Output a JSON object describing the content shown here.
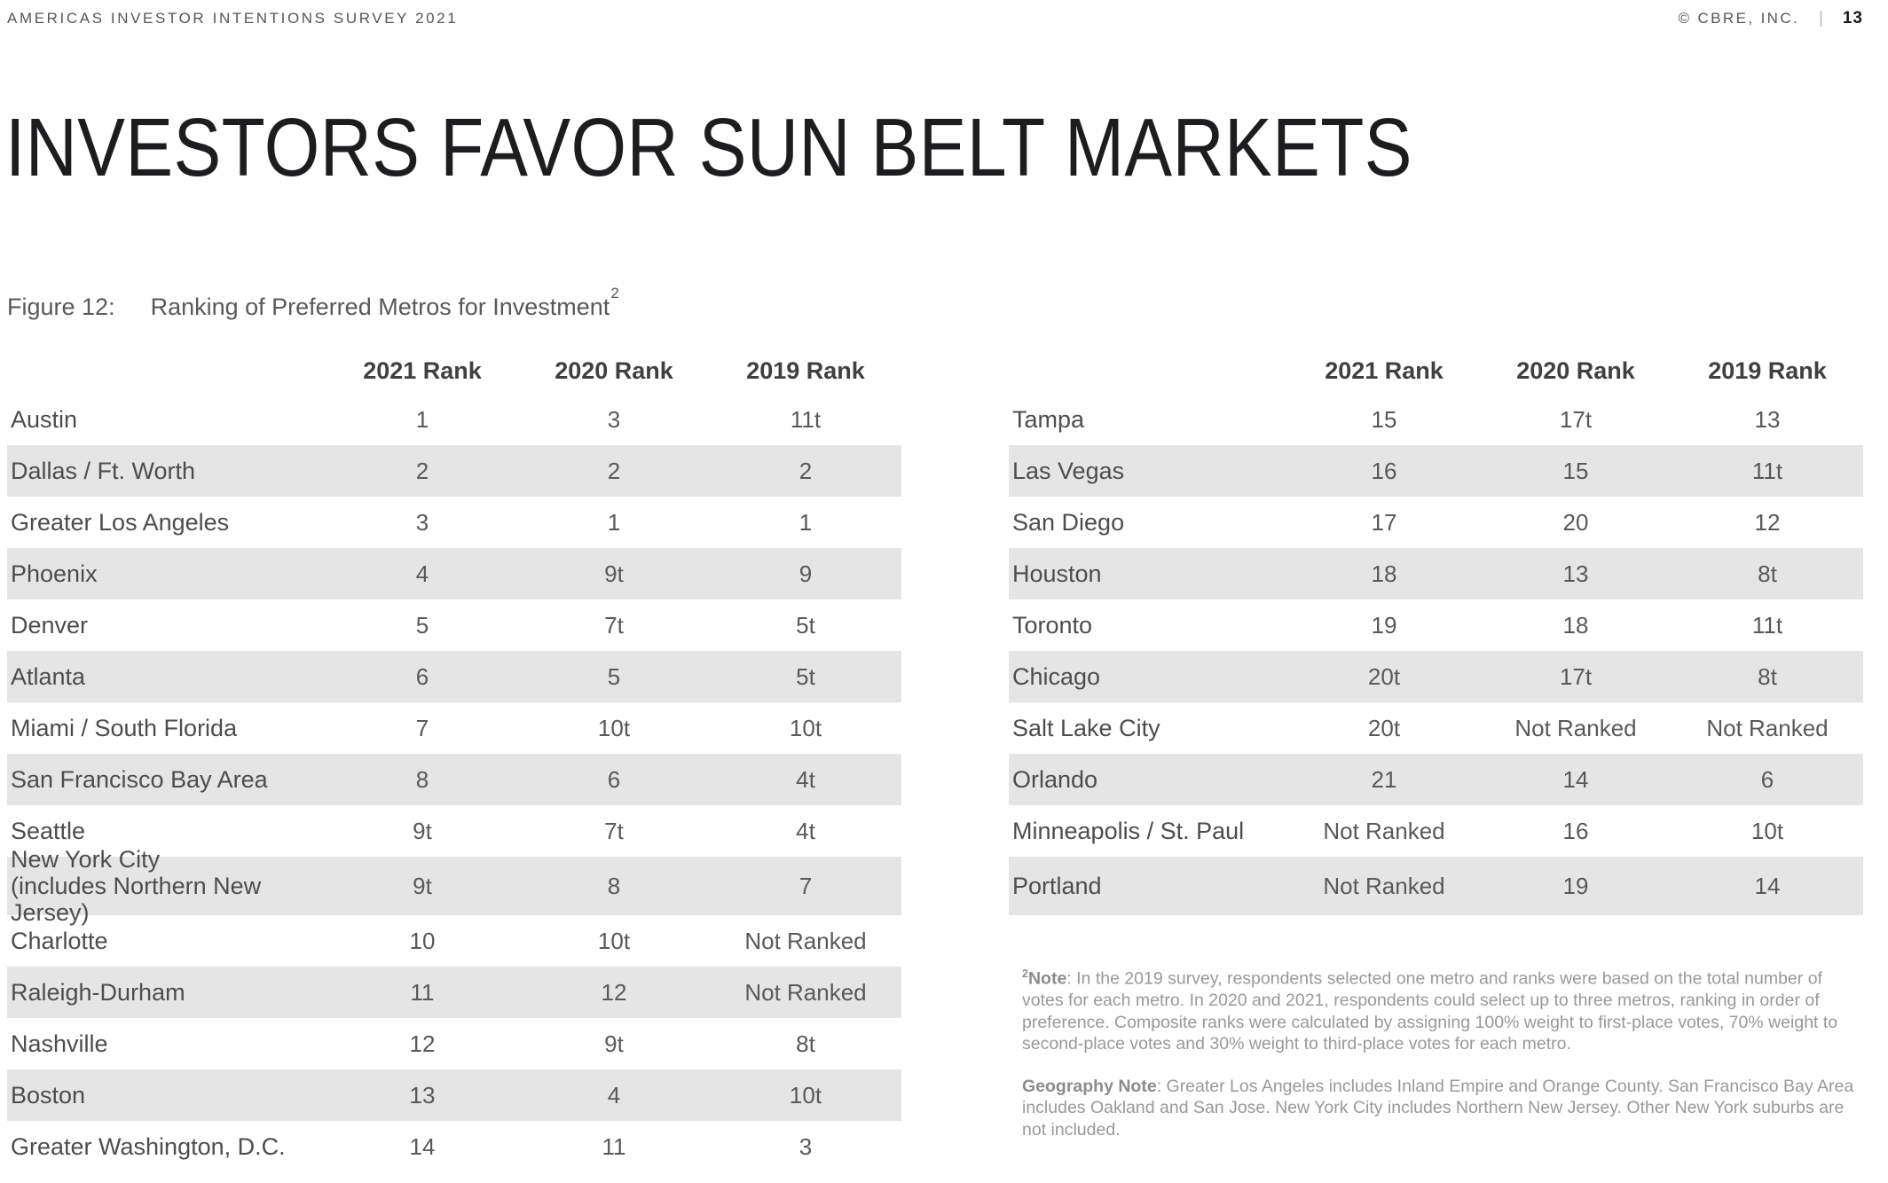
{
  "header": {
    "survey_title": "AMERICAS INVESTOR INTENTIONS SURVEY 2021",
    "copyright": "© CBRE, INC.",
    "separator": "|",
    "page_number": "13"
  },
  "title": "INVESTORS FAVOR SUN BELT MARKETS",
  "figure": {
    "label": "Figure 12:",
    "caption": "Ranking of Preferred Metros for Investment",
    "superscript": "2"
  },
  "columns": [
    "2021 Rank",
    "2020 Rank",
    "2019 Rank"
  ],
  "left_table_rows": [
    {
      "metro": "Austin",
      "ranks": [
        "1",
        "3",
        "11t"
      ]
    },
    {
      "metro": "Dallas / Ft. Worth",
      "ranks": [
        "2",
        "2",
        "2"
      ]
    },
    {
      "metro": "Greater Los Angeles",
      "ranks": [
        "3",
        "1",
        "1"
      ]
    },
    {
      "metro": "Phoenix",
      "ranks": [
        "4",
        "9t",
        "9"
      ]
    },
    {
      "metro": "Denver",
      "ranks": [
        "5",
        "7t",
        "5t"
      ]
    },
    {
      "metro": "Atlanta",
      "ranks": [
        "6",
        "5",
        "5t"
      ]
    },
    {
      "metro": "Miami / South Florida",
      "ranks": [
        "7",
        "10t",
        "10t"
      ]
    },
    {
      "metro": "San Francisco Bay Area",
      "ranks": [
        "8",
        "6",
        "4t"
      ]
    },
    {
      "metro": "Seattle",
      "ranks": [
        "9t",
        "7t",
        "4t"
      ]
    },
    {
      "metro": "New York City",
      "metro_line2": "(includes Northern New Jersey)",
      "tall": true,
      "ranks": [
        "9t",
        "8",
        "7"
      ]
    },
    {
      "metro": "Charlotte",
      "ranks": [
        "10",
        "10t",
        "Not Ranked"
      ]
    },
    {
      "metro": "Raleigh-Durham",
      "ranks": [
        "11",
        "12",
        "Not Ranked"
      ]
    },
    {
      "metro": "Nashville",
      "ranks": [
        "12",
        "9t",
        "8t"
      ]
    },
    {
      "metro": "Boston",
      "ranks": [
        "13",
        "4",
        "10t"
      ]
    },
    {
      "metro": "Greater Washington, D.C.",
      "ranks": [
        "14",
        "11",
        "3"
      ]
    }
  ],
  "right_table_rows": [
    {
      "metro": "Tampa",
      "ranks": [
        "15",
        "17t",
        "13"
      ]
    },
    {
      "metro": "Las Vegas",
      "ranks": [
        "16",
        "15",
        "11t"
      ]
    },
    {
      "metro": "San Diego",
      "ranks": [
        "17",
        "20",
        "12"
      ]
    },
    {
      "metro": "Houston",
      "ranks": [
        "18",
        "13",
        "8t"
      ]
    },
    {
      "metro": "Toronto",
      "ranks": [
        "19",
        "18",
        "11t"
      ]
    },
    {
      "metro": "Chicago",
      "ranks": [
        "20t",
        "17t",
        "8t"
      ]
    },
    {
      "metro": "Salt Lake City",
      "ranks": [
        "20t",
        "Not Ranked",
        "Not Ranked"
      ]
    },
    {
      "metro": "Orlando",
      "ranks": [
        "21",
        "14",
        "6"
      ]
    },
    {
      "metro": "Minneapolis / St. Paul",
      "ranks": [
        "Not Ranked",
        "16",
        "10t"
      ]
    },
    {
      "metro": "Portland",
      "tall": true,
      "ranks": [
        "Not Ranked",
        "19",
        "14"
      ]
    }
  ],
  "notes": {
    "note_superscript": "2",
    "note_label": "Note",
    "note_text": ": In the 2019 survey, respondents selected one metro and ranks were based on the total number of votes for each metro. In 2020 and 2021, respondents could select up to three metros, ranking in order of preference. Composite ranks were calculated by assigning 100% weight to first-place votes, 70% weight to second-place votes and 30% weight to third-place votes for each metro.",
    "geography_label": "Geography Note",
    "geography_text": ": Greater Los Angeles includes Inland Empire and Orange County. San Francisco Bay Area includes Oakland and San Jose. New York City includes Northern New Jersey. Other New York suburbs are not included."
  },
  "colors": {
    "stripe": "#e5e5e5",
    "metro_text": "#4d4d4f",
    "rank_text": "#58595b",
    "header_text": "#404042",
    "title_text": "#1d1d20",
    "note_text": "#97999b"
  }
}
